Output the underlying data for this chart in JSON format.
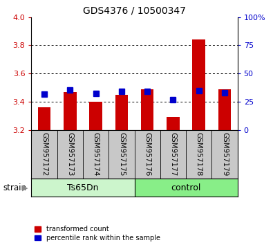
{
  "title": "GDS4376 / 10500347",
  "samples": [
    "GSM957172",
    "GSM957173",
    "GSM957174",
    "GSM957175",
    "GSM957176",
    "GSM957177",
    "GSM957178",
    "GSM957179"
  ],
  "red_values": [
    3.36,
    3.47,
    3.4,
    3.45,
    3.49,
    3.29,
    3.84,
    3.49
  ],
  "blue_values": [
    3.455,
    3.482,
    3.458,
    3.475,
    3.475,
    3.415,
    3.478,
    3.462
  ],
  "y_min": 3.2,
  "y_max": 4.0,
  "y_ticks": [
    3.2,
    3.4,
    3.6,
    3.8,
    4.0
  ],
  "right_y_ticks": [
    0,
    25,
    50,
    75,
    100
  ],
  "right_y_labels": [
    "0",
    "25",
    "50",
    "75",
    "100%"
  ],
  "bar_width": 0.5,
  "blue_marker_size": 6,
  "red_color": "#cc0000",
  "blue_color": "#0000cc",
  "bg_gray": "#c8c8c8",
  "ts65dn_color": "#ccf5cc",
  "control_color": "#88ee88",
  "title_fontsize": 10,
  "tick_fontsize": 8,
  "label_fontsize": 7.5,
  "group_fontsize": 9,
  "legend_fontsize": 7
}
